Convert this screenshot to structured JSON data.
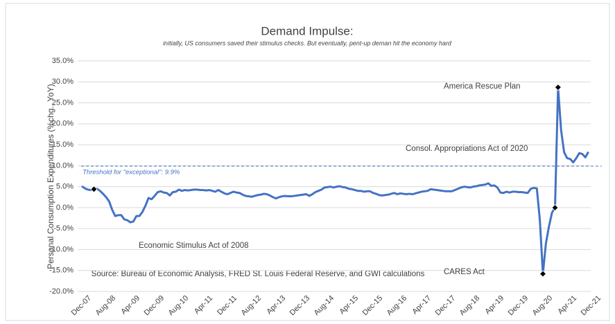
{
  "chart_data": {
    "type": "line",
    "title": "Demand Impulse:",
    "subtitle": "initially, US consumers saved their stimulus checks. But eventually, pent-up deman hit the economy hard",
    "y_label": "Personal Consumption Expenditures (%chg., YoY)",
    "source": "Source: Bureau of Economic Analysis, FRED St. Louis Federal Reserve, and GWI calculations",
    "annotations": [
      "America Rescue Plan",
      "Consol. Appropriations Act of 2020",
      "Economic Stimulus Act of 2008",
      "CARES Act"
    ],
    "threshold": {
      "value": 9.9,
      "label": "Threshold for \"exceptional\": 9.9%"
    },
    "markers": [
      4,
      152,
      156,
      157
    ],
    "ylim": [
      -20,
      35
    ],
    "yticks": [
      {
        "value": -20,
        "label": "-20.0%"
      },
      {
        "value": -15,
        "label": "-15.0%"
      },
      {
        "value": -10,
        "label": "-10.0%"
      },
      {
        "value": -5,
        "label": "-5.0%"
      },
      {
        "value": 0,
        "label": "0.0%"
      },
      {
        "value": 5,
        "label": "5.0%"
      },
      {
        "value": 10,
        "label": "10.0%"
      },
      {
        "value": 15,
        "label": "15.0%"
      },
      {
        "value": 20,
        "label": "20.0%"
      },
      {
        "value": 25,
        "label": "25.0%"
      },
      {
        "value": 30,
        "label": "30.0%"
      },
      {
        "value": 35,
        "label": "35.0%"
      }
    ],
    "grid": true,
    "categories": [
      "Dec-07",
      null,
      null,
      null,
      null,
      null,
      null,
      null,
      "Aug-08",
      null,
      null,
      null,
      null,
      null,
      null,
      null,
      "Apr-09",
      null,
      null,
      null,
      null,
      null,
      null,
      null,
      "Dec-09",
      null,
      null,
      null,
      null,
      null,
      null,
      null,
      "Aug-10",
      null,
      null,
      null,
      null,
      null,
      null,
      null,
      "Apr-11",
      null,
      null,
      null,
      null,
      null,
      null,
      null,
      "Dec-11",
      null,
      null,
      null,
      null,
      null,
      null,
      null,
      "Aug-12",
      null,
      null,
      null,
      null,
      null,
      null,
      null,
      "Apr-13",
      null,
      null,
      null,
      null,
      null,
      null,
      null,
      "Dec-13",
      null,
      null,
      null,
      null,
      null,
      null,
      null,
      "Aug-14",
      null,
      null,
      null,
      null,
      null,
      null,
      null,
      "Apr-15",
      null,
      null,
      null,
      null,
      null,
      null,
      null,
      "Dec-15",
      null,
      null,
      null,
      null,
      null,
      null,
      null,
      "Aug-16",
      null,
      null,
      null,
      null,
      null,
      null,
      null,
      "Apr-17",
      null,
      null,
      null,
      null,
      null,
      null,
      null,
      "Dec-17",
      null,
      null,
      null,
      null,
      null,
      null,
      null,
      "Aug-18",
      null,
      null,
      null,
      null,
      null,
      null,
      null,
      "Apr-19",
      null,
      null,
      null,
      null,
      null,
      null,
      null,
      "Dec-19",
      null,
      null,
      null,
      null,
      null,
      null,
      null,
      "Aug-20",
      null,
      null,
      null,
      null,
      null,
      null,
      null,
      "Apr-21",
      null,
      null,
      null,
      null,
      null,
      null,
      null,
      "Dec-21"
    ],
    "series": [
      {
        "name": "PCE",
        "color": "#4472c4",
        "values": [
          5.1,
          4.6,
          4.3,
          4.2,
          4.4,
          4.5,
          4.0,
          3.3,
          2.5,
          1.5,
          -0.5,
          -2.0,
          -1.8,
          -1.8,
          -2.8,
          -3.0,
          -3.5,
          -3.3,
          -2.0,
          -2.0,
          -1.0,
          0.5,
          2.3,
          2.0,
          2.8,
          3.7,
          3.9,
          3.6,
          3.5,
          2.9,
          3.7,
          3.8,
          4.3,
          4.0,
          4.2,
          4.1,
          4.2,
          4.3,
          4.3,
          4.2,
          4.2,
          4.1,
          4.2,
          4.0,
          3.8,
          4.2,
          3.8,
          3.4,
          3.2,
          3.5,
          3.8,
          3.6,
          3.5,
          3.1,
          2.8,
          2.7,
          2.6,
          2.8,
          3.0,
          3.1,
          3.3,
          3.2,
          2.9,
          2.5,
          2.2,
          2.5,
          2.7,
          2.8,
          2.7,
          2.7,
          2.8,
          2.9,
          3.0,
          3.1,
          3.2,
          2.8,
          3.2,
          3.7,
          4.0,
          4.3,
          4.8,
          4.9,
          5.0,
          4.8,
          5.0,
          5.1,
          4.9,
          4.8,
          4.5,
          4.4,
          4.2,
          4.0,
          4.0,
          3.8,
          3.9,
          3.9,
          3.5,
          3.3,
          3.0,
          2.9,
          3.0,
          3.1,
          3.3,
          3.5,
          3.2,
          3.4,
          3.3,
          3.2,
          3.3,
          3.2,
          3.4,
          3.6,
          3.8,
          3.9,
          4.0,
          4.4,
          4.3,
          4.2,
          4.1,
          4.0,
          3.9,
          3.9,
          3.9,
          4.2,
          4.5,
          4.8,
          5.0,
          4.9,
          4.8,
          5.0,
          5.1,
          5.3,
          5.4,
          5.5,
          5.8,
          5.2,
          5.3,
          4.8,
          3.6,
          3.5,
          3.8,
          3.6,
          3.8,
          3.8,
          3.7,
          3.7,
          3.6,
          3.5,
          4.5,
          4.7,
          4.6,
          -3.0,
          -15.8,
          -8.5,
          -4.5,
          -1.2,
          0.0,
          28.7,
          18.5,
          13.2,
          11.8,
          11.6,
          10.8,
          11.8,
          13.0,
          12.8,
          12.0,
          13.3,
          null
        ]
      }
    ]
  }
}
